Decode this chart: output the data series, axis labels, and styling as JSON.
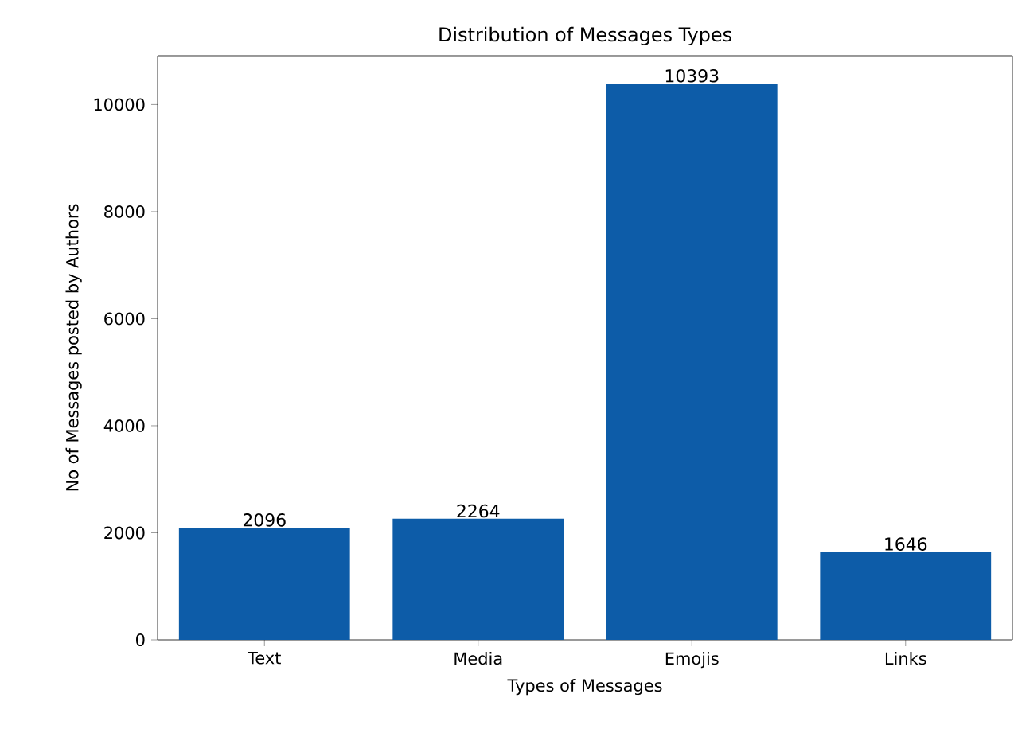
{
  "chart_data": {
    "type": "bar",
    "title": "Distribution of Messages Types",
    "xlabel": "Types of Messages",
    "ylabel": "No of Messages posted by Authors",
    "categories": [
      "Text",
      "Media",
      "Emojis",
      "Links"
    ],
    "values": [
      2096,
      2264,
      10393,
      1646
    ],
    "color": "#0d5ca8",
    "data_labels": true,
    "ylim": [
      0,
      10913
    ],
    "yticks": [
      0,
      2000,
      4000,
      6000,
      8000,
      10000
    ],
    "grid": false
  }
}
